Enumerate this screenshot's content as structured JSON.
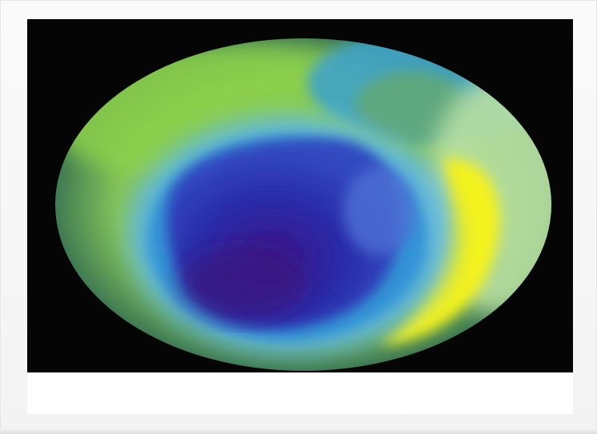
{
  "image": {
    "subject": "ozone-hole-satellite-map",
    "colors": {
      "background": "#050505",
      "outer_ring": "#6aa860",
      "green": "#8fd14a",
      "cyan": "#34a6d8",
      "light_blue": "#6db8e8",
      "deep_blue": "#2424a6",
      "violet": "#3b1a8f",
      "yellow": "#f2f21e",
      "pale_green": "#b8e0a0"
    }
  }
}
